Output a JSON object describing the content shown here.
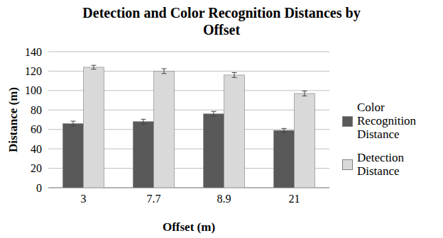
{
  "chart_data": {
    "type": "bar",
    "title": "Detection and Color Recognition Distances by Offset",
    "x_label": "Offset (m)",
    "y_label": "Distance (m)",
    "categories": [
      "3",
      "7.7",
      "8.9",
      "21"
    ],
    "series": [
      {
        "name": "Color Recognition Distance",
        "color": "#595959",
        "values": [
          66,
          68,
          76,
          59
        ],
        "errors": [
          2.5,
          2.5,
          2.5,
          2
        ]
      },
      {
        "name": "Detection Distance",
        "color": "#d9d9d9",
        "values": [
          124,
          120,
          116,
          97
        ],
        "errors": [
          2,
          2.5,
          2.5,
          2.5
        ]
      }
    ],
    "ylim": [
      0,
      140
    ],
    "yticks": [
      0,
      20,
      40,
      60,
      80,
      100,
      120,
      140
    ],
    "grid": true,
    "legend": "right"
  }
}
